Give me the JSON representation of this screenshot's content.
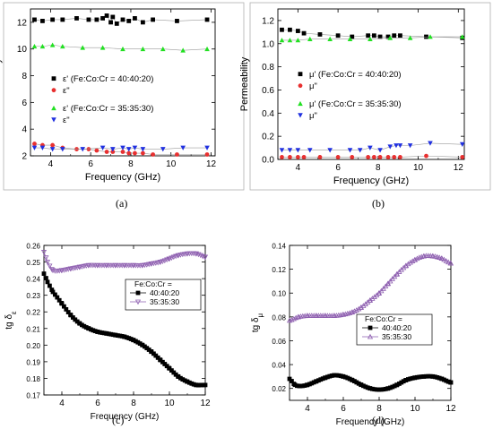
{
  "chart_data": [
    {
      "panel": "a",
      "caption": "(a)",
      "type": "scatter",
      "xlabel": "Frequency (GHz)",
      "ylabel": "Permittivity",
      "xlim": [
        3,
        12.2
      ],
      "ylim": [
        2,
        13
      ],
      "xticks": [
        4,
        6,
        8,
        10,
        12
      ],
      "yticks": [
        2,
        4,
        6,
        8,
        10,
        12
      ],
      "legend_placement": "center",
      "series": [
        {
          "name": "ε' (Fe:Co:Cr = 40:40:20)",
          "color": "#000000",
          "marker": "square",
          "x": [
            3.2,
            3.6,
            4.1,
            4.6,
            5.3,
            5.9,
            6.3,
            6.6,
            6.8,
            7.0,
            7.1,
            7.3,
            7.6,
            7.9,
            8.2,
            8.6,
            9.1,
            10.3,
            11.8
          ],
          "y": [
            12.2,
            12.1,
            12.2,
            12.2,
            12.3,
            12.2,
            12.2,
            12.3,
            12.5,
            12.0,
            12.4,
            11.9,
            12.2,
            12.1,
            12.3,
            12.0,
            12.2,
            12.1,
            12.2
          ]
        },
        {
          "name": "ε\"",
          "color": "#e83030",
          "marker": "circle",
          "x": [
            3.2,
            3.6,
            4.1,
            4.6,
            5.3,
            5.9,
            6.3,
            6.8,
            7.1,
            7.6,
            7.9,
            8.2,
            8.6,
            9.1,
            10.3,
            11.8
          ],
          "y": [
            2.9,
            2.8,
            2.8,
            2.6,
            2.5,
            2.5,
            2.4,
            2.3,
            2.3,
            2.3,
            2.2,
            2.2,
            2.2,
            2.1,
            2.1,
            2.1
          ]
        },
        {
          "name": "ε' (Fe:Co:Cr = 35:35:30)",
          "color": "#22e022",
          "marker": "triangle-up",
          "x": [
            3.2,
            3.6,
            4.1,
            4.6,
            5.6,
            6.6,
            7.6,
            8.6,
            9.6,
            10.6,
            11.8
          ],
          "y": [
            10.2,
            10.2,
            10.3,
            10.2,
            10.1,
            10.1,
            10.0,
            10.0,
            10.0,
            9.9,
            10.0
          ]
        },
        {
          "name": "ε\"",
          "color": "#2030e0",
          "marker": "triangle-down",
          "x": [
            3.2,
            3.6,
            4.1,
            4.6,
            5.6,
            6.6,
            7.1,
            7.6,
            7.9,
            8.2,
            8.6,
            9.6,
            10.6,
            11.8
          ],
          "y": [
            2.6,
            2.6,
            2.5,
            2.5,
            2.5,
            2.6,
            2.5,
            2.6,
            2.5,
            2.6,
            2.5,
            2.5,
            2.6,
            2.6
          ]
        }
      ]
    },
    {
      "panel": "b",
      "caption": "(b)",
      "type": "scatter",
      "xlabel": "Frequency (GHz)",
      "ylabel": "Permeability",
      "xlim": [
        3,
        12.3
      ],
      "ylim": [
        0,
        1.3
      ],
      "xticks": [
        4,
        6,
        8,
        10,
        12
      ],
      "yticks": [
        0.0,
        0.2,
        0.4,
        0.6,
        0.8,
        1.0,
        1.2
      ],
      "legend_placement": "center",
      "series": [
        {
          "name": "μ' (Fe:Co:Cr = 40:40:20)",
          "color": "#000000",
          "marker": "square",
          "x": [
            3.2,
            3.6,
            4.0,
            4.3,
            5.1,
            6.0,
            6.7,
            7.5,
            7.8,
            8.1,
            8.5,
            8.8,
            9.1,
            10.4,
            12.2
          ],
          "y": [
            1.12,
            1.12,
            1.11,
            1.09,
            1.08,
            1.07,
            1.06,
            1.07,
            1.07,
            1.06,
            1.06,
            1.07,
            1.07,
            1.06,
            1.05
          ]
        },
        {
          "name": "μ\"",
          "color": "#e83030",
          "marker": "circle",
          "x": [
            3.2,
            3.6,
            4.0,
            4.3,
            5.1,
            6.0,
            6.7,
            7.5,
            7.8,
            8.1,
            8.5,
            8.8,
            9.1,
            10.4,
            12.2
          ],
          "y": [
            0.02,
            0.02,
            0.02,
            0.02,
            0.02,
            0.02,
            0.02,
            0.02,
            0.02,
            0.02,
            0.02,
            0.02,
            0.02,
            0.03,
            0.02
          ]
        },
        {
          "name": "μ' (Fe:Co:Cr = 35:35:30)",
          "color": "#22e022",
          "marker": "triangle-up",
          "x": [
            3.2,
            3.6,
            4.0,
            4.6,
            5.6,
            6.6,
            7.6,
            8.6,
            9.6,
            10.6,
            12.2
          ],
          "y": [
            1.03,
            1.03,
            1.03,
            1.04,
            1.04,
            1.04,
            1.04,
            1.05,
            1.05,
            1.06,
            1.06
          ]
        },
        {
          "name": "μ\"",
          "color": "#2030e0",
          "marker": "triangle-down",
          "x": [
            3.2,
            3.6,
            4.0,
            4.6,
            5.6,
            6.6,
            7.1,
            7.6,
            8.1,
            8.6,
            8.9,
            9.1,
            9.6,
            10.6,
            12.2
          ],
          "y": [
            0.08,
            0.08,
            0.08,
            0.08,
            0.08,
            0.08,
            0.08,
            0.1,
            0.08,
            0.11,
            0.12,
            0.12,
            0.12,
            0.14,
            0.13
          ]
        }
      ]
    },
    {
      "panel": "c",
      "caption": "(c)",
      "type": "line",
      "xlabel": "Frequency (GHz)",
      "ylabel": "tg δ",
      "ylabel_sub": "ε",
      "xlim": [
        3,
        12
      ],
      "ylim": [
        0.17,
        0.26
      ],
      "xticks": [
        4,
        6,
        8,
        10,
        12
      ],
      "yticks": [
        0.17,
        0.18,
        0.19,
        0.2,
        0.21,
        0.22,
        0.23,
        0.24,
        0.25,
        0.26
      ],
      "legend_title": "Fe:Co:Cr =",
      "legend_placement": "center-right",
      "series": [
        {
          "name": "40:40:20",
          "color": "#000000",
          "marker": "square",
          "x": [
            3.0,
            3.2,
            3.5,
            4.0,
            4.5,
            5.0,
            5.5,
            6.0,
            6.5,
            7.0,
            7.5,
            8.0,
            8.5,
            9.0,
            9.5,
            10.0,
            10.5,
            11.0,
            11.5,
            11.8,
            12.0
          ],
          "y": [
            0.243,
            0.238,
            0.232,
            0.225,
            0.218,
            0.213,
            0.21,
            0.208,
            0.207,
            0.206,
            0.205,
            0.203,
            0.2,
            0.196,
            0.191,
            0.186,
            0.181,
            0.178,
            0.176,
            0.176,
            0.176
          ]
        },
        {
          "name": "35:35:30",
          "color": "#8e5fb0",
          "marker": "triangle-down-open",
          "x": [
            3.0,
            3.2,
            3.5,
            4.0,
            4.5,
            5.0,
            5.5,
            6.0,
            6.5,
            7.0,
            7.5,
            8.0,
            8.5,
            9.0,
            9.5,
            10.0,
            10.5,
            11.0,
            11.5,
            12.0
          ],
          "y": [
            0.256,
            0.25,
            0.245,
            0.245,
            0.246,
            0.247,
            0.248,
            0.248,
            0.248,
            0.248,
            0.248,
            0.248,
            0.248,
            0.249,
            0.25,
            0.252,
            0.254,
            0.255,
            0.255,
            0.253
          ]
        }
      ]
    },
    {
      "panel": "d",
      "caption": "(d)",
      "type": "line",
      "xlabel": "Frequency (GHz)",
      "ylabel": "tg δ",
      "ylabel_sub": "μ",
      "xlim": [
        3,
        12
      ],
      "ylim": [
        0.01,
        0.14
      ],
      "xticks": [
        4,
        6,
        8,
        10,
        12
      ],
      "yticks": [
        0.02,
        0.04,
        0.06,
        0.08,
        0.1,
        0.12,
        0.14
      ],
      "legend_title": "Fe:Co:Cr =",
      "legend_placement": "center-right",
      "series": [
        {
          "name": "40:40:20",
          "color": "#000000",
          "marker": "square",
          "x": [
            3.0,
            3.3,
            3.6,
            4.0,
            4.5,
            5.0,
            5.5,
            6.0,
            6.5,
            7.0,
            7.5,
            8.0,
            8.5,
            9.0,
            9.5,
            10.0,
            10.5,
            11.0,
            11.5,
            12.0
          ],
          "y": [
            0.028,
            0.023,
            0.022,
            0.023,
            0.026,
            0.029,
            0.031,
            0.03,
            0.027,
            0.023,
            0.02,
            0.019,
            0.02,
            0.023,
            0.027,
            0.029,
            0.03,
            0.03,
            0.028,
            0.025
          ]
        },
        {
          "name": "35:35:30",
          "color": "#8e5fb0",
          "marker": "triangle-up-open",
          "x": [
            3.0,
            3.5,
            4.0,
            4.5,
            5.0,
            5.5,
            6.0,
            6.5,
            7.0,
            7.5,
            8.0,
            8.5,
            9.0,
            9.5,
            10.0,
            10.5,
            11.0,
            11.5,
            12.0
          ],
          "y": [
            0.077,
            0.08,
            0.081,
            0.081,
            0.081,
            0.081,
            0.082,
            0.084,
            0.088,
            0.094,
            0.1,
            0.108,
            0.116,
            0.123,
            0.128,
            0.131,
            0.131,
            0.129,
            0.125
          ]
        }
      ]
    }
  ]
}
